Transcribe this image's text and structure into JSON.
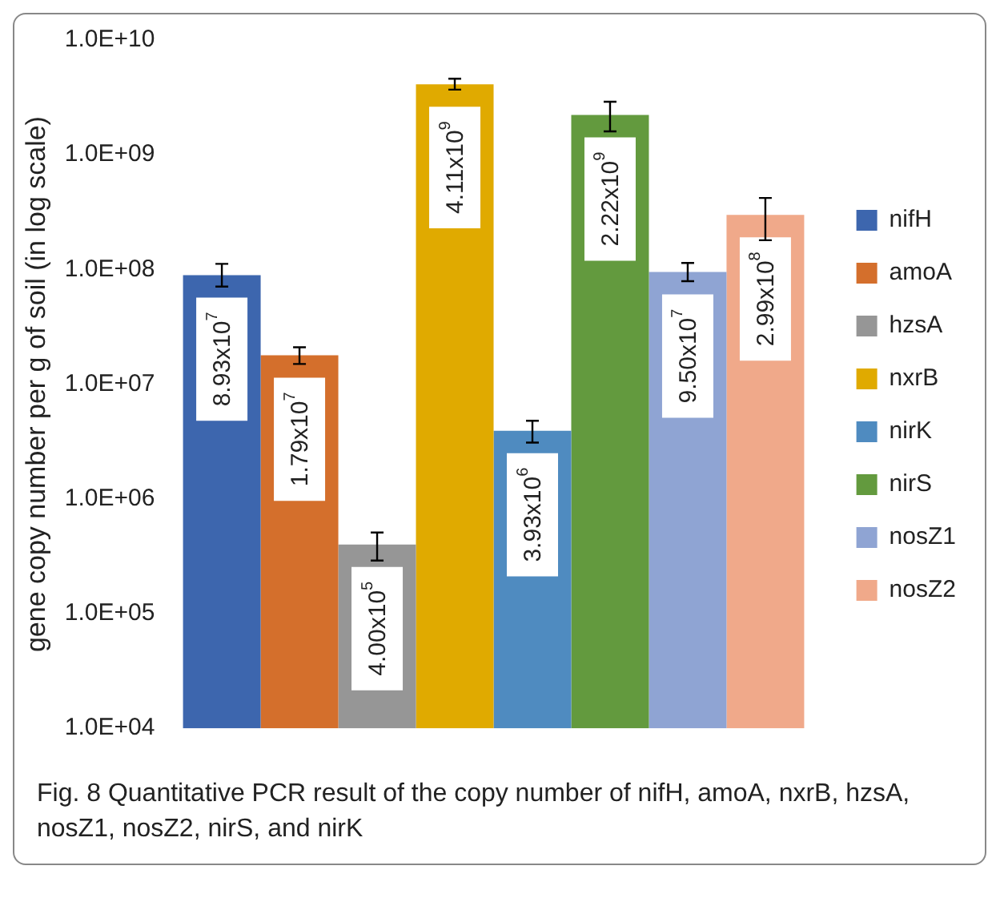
{
  "chart_data": {
    "type": "bar",
    "ylabel": "gene copy number per g of soil (in log scale)",
    "categories": [
      null
    ],
    "log": "y",
    "ylim": [
      10000,
      10000000000
    ],
    "yticks": [
      {
        "value": 10000,
        "label": "1.0E+04"
      },
      {
        "value": 100000,
        "label": "1.0E+05"
      },
      {
        "value": 1000000,
        "label": "1.0E+06"
      },
      {
        "value": 10000000,
        "label": "1.0E+07"
      },
      {
        "value": 100000000,
        "label": "1.0E+08"
      },
      {
        "value": 1000000000,
        "label": "1.0E+09"
      },
      {
        "value": 10000000000,
        "label": "1.0E+10"
      }
    ],
    "grid": false,
    "legend": "right",
    "series": [
      {
        "name": "nifH",
        "color": "#3d66ae",
        "values": [
          89300000
        ],
        "errors": [
          [
            71000000,
            112000000
          ]
        ],
        "value_labels": [
          "8.93x10$^{7}$"
        ]
      },
      {
        "name": "amoA",
        "color": "#d46f2c",
        "values": [
          17900000
        ],
        "errors": [
          [
            15000000,
            21000000
          ]
        ],
        "value_labels": [
          "1.79x10$^{7}$"
        ]
      },
      {
        "name": "hzsA",
        "color": "#969696",
        "values": [
          400000
        ],
        "errors": [
          [
            290000,
            510000
          ]
        ],
        "value_labels": [
          "4.00x10$^{5}$"
        ]
      },
      {
        "name": "nxrB",
        "color": "#e0aa00",
        "values": [
          4110000000
        ],
        "errors": [
          [
            3700000000,
            4600000000
          ]
        ],
        "value_labels": [
          "4.11x10$^{9}$"
        ]
      },
      {
        "name": "nirK",
        "color": "#4f8bc0",
        "values": [
          3930000
        ],
        "errors": [
          [
            3100000,
            4800000
          ]
        ],
        "value_labels": [
          "3.93x10$^{6}$"
        ]
      },
      {
        "name": "nirS",
        "color": "#639a3e",
        "values": [
          2220000000
        ],
        "errors": [
          [
            1600000000,
            2900000000
          ]
        ],
        "value_labels": [
          "2.22x10$^{9}$"
        ]
      },
      {
        "name": "nosZ1",
        "color": "#8fa4d3",
        "values": [
          95000000
        ],
        "errors": [
          [
            79000000,
            114000000
          ]
        ],
        "value_labels": [
          "9.50x10$^{7}$"
        ]
      },
      {
        "name": "nosZ2",
        "color": "#f0a98a",
        "values": [
          299000000
        ],
        "errors": [
          [
            180000000,
            420000000
          ]
        ],
        "value_labels": [
          "2.99x10$^{8}$"
        ]
      }
    ],
    "annotations": [
      "Fig. 8  Quantitative PCR result of the copy number of nifH, amoA, nxrB, hzsA, nosZ1, nosZ2, nirS, and nirK"
    ]
  }
}
